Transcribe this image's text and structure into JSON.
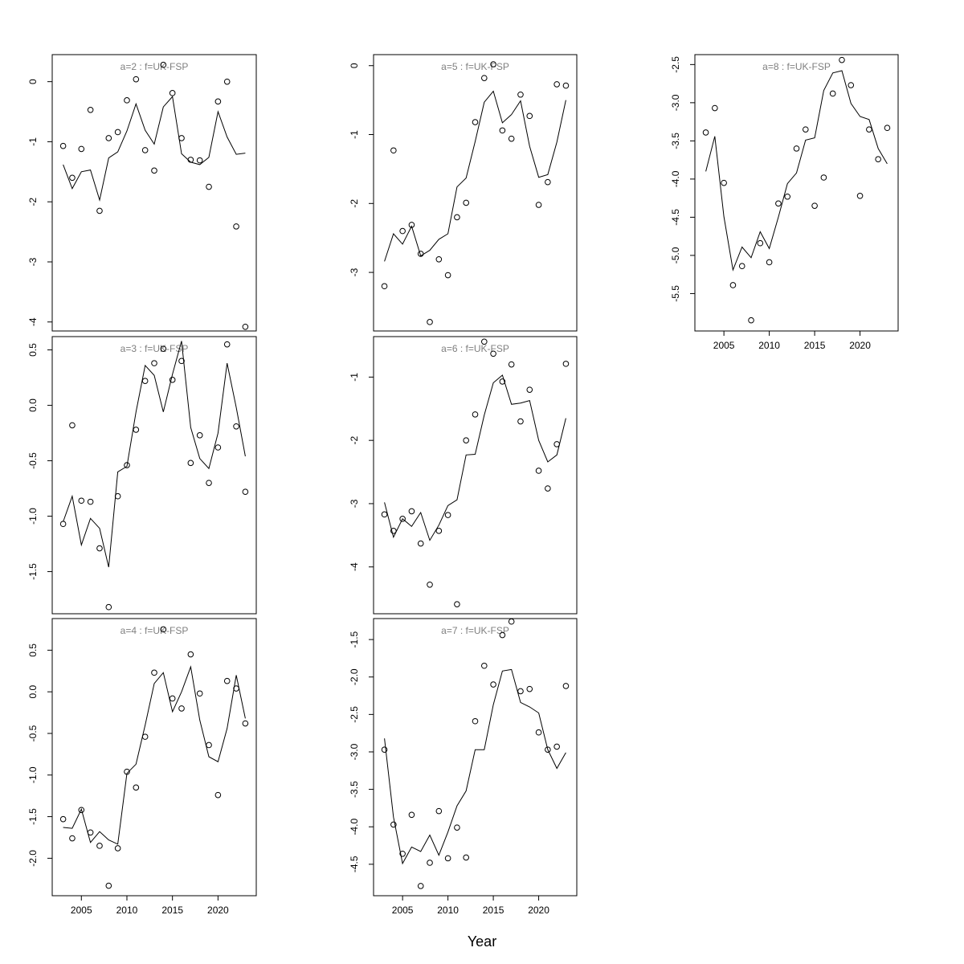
{
  "xlabel": "Year",
  "chart_data": [
    {
      "type": "line",
      "title": "a=2  :  f=UK-FSP",
      "xlim": [
        2001.8,
        2024.2
      ],
      "ylim": [
        -4.15,
        0.45
      ],
      "yticks": [
        0,
        -1,
        -2,
        -3,
        -4
      ],
      "xticks": [],
      "series": [
        {
          "kind": "line",
          "x": [
            2003,
            2004,
            2005,
            2006,
            2007,
            2008,
            2009,
            2010,
            2011,
            2012,
            2013,
            2014,
            2015,
            2016,
            2017,
            2018,
            2019,
            2020,
            2021,
            2022,
            2023
          ],
          "y": [
            -1.38,
            -1.78,
            -1.5,
            -1.47,
            -1.97,
            -1.27,
            -1.17,
            -0.82,
            -0.37,
            -0.81,
            -1.04,
            -0.42,
            -0.25,
            -1.2,
            -1.34,
            -1.38,
            -1.26,
            -0.5,
            -0.92,
            -1.21,
            -1.19
          ]
        },
        {
          "kind": "points",
          "x": [
            2003,
            2004,
            2005,
            2006,
            2007,
            2008,
            2009,
            2010,
            2011,
            2012,
            2013,
            2014,
            2015,
            2016,
            2017,
            2018,
            2019,
            2020,
            2021,
            2022,
            2023
          ],
          "y": [
            -1.07,
            -1.6,
            -1.12,
            -0.47,
            -2.15,
            -0.94,
            -0.84,
            -0.31,
            0.04,
            -1.14,
            -1.48,
            0.28,
            -0.19,
            -0.94,
            -1.3,
            -1.31,
            -1.75,
            -0.33,
            0.0,
            -2.41,
            -4.08
          ]
        }
      ]
    },
    {
      "type": "line",
      "title": "a=3  :  f=UK-FSP",
      "xlim": [
        2001.8,
        2024.2
      ],
      "ylim": [
        -1.88,
        0.62
      ],
      "yticks": [
        0.5,
        0.0,
        -0.5,
        -1.0,
        -1.5
      ],
      "xticks": [],
      "series": [
        {
          "kind": "line",
          "x": [
            2003,
            2004,
            2005,
            2006,
            2007,
            2008,
            2009,
            2010,
            2011,
            2012,
            2013,
            2014,
            2015,
            2016,
            2017,
            2018,
            2019,
            2020,
            2021,
            2022,
            2023
          ],
          "y": [
            -1.05,
            -0.82,
            -1.26,
            -1.02,
            -1.11,
            -1.46,
            -0.6,
            -0.55,
            -0.06,
            0.36,
            0.27,
            -0.06,
            0.28,
            0.58,
            -0.2,
            -0.48,
            -0.57,
            -0.25,
            0.38,
            -0.02,
            -0.46
          ]
        },
        {
          "kind": "points",
          "x": [
            2003,
            2004,
            2005,
            2006,
            2007,
            2008,
            2009,
            2010,
            2011,
            2012,
            2013,
            2014,
            2015,
            2016,
            2017,
            2018,
            2019,
            2020,
            2021,
            2022,
            2023
          ],
          "y": [
            -1.07,
            -0.18,
            -0.86,
            -0.87,
            -1.29,
            -1.82,
            -0.82,
            -0.54,
            -0.22,
            0.22,
            0.38,
            0.51,
            0.23,
            0.4,
            -0.52,
            -0.27,
            -0.7,
            -0.38,
            0.55,
            -0.19,
            -0.78
          ]
        }
      ]
    },
    {
      "type": "line",
      "title": "a=4  :  f=UK-FSP",
      "xlim": [
        2001.8,
        2024.2
      ],
      "ylim": [
        -2.45,
        0.88
      ],
      "yticks": [
        0.5,
        0.0,
        -0.5,
        -1.0,
        -1.5,
        -2.0
      ],
      "xticks": [
        2005,
        2010,
        2015,
        2020
      ],
      "series": [
        {
          "kind": "line",
          "x": [
            2003,
            2004,
            2005,
            2006,
            2007,
            2008,
            2009,
            2010,
            2011,
            2012,
            2013,
            2014,
            2015,
            2016,
            2017,
            2018,
            2019,
            2020,
            2021,
            2022,
            2023
          ],
          "y": [
            -1.63,
            -1.64,
            -1.41,
            -1.81,
            -1.68,
            -1.78,
            -1.83,
            -0.98,
            -0.87,
            -0.4,
            0.1,
            0.23,
            -0.24,
            0.0,
            0.3,
            -0.34,
            -0.78,
            -0.84,
            -0.44,
            0.2,
            -0.32
          ]
        },
        {
          "kind": "points",
          "x": [
            2003,
            2004,
            2005,
            2006,
            2007,
            2008,
            2009,
            2010,
            2011,
            2012,
            2013,
            2014,
            2015,
            2016,
            2017,
            2018,
            2019,
            2020,
            2021,
            2022,
            2023
          ],
          "y": [
            -1.53,
            -1.76,
            -1.42,
            -1.69,
            -1.85,
            -2.33,
            -1.88,
            -0.96,
            -1.15,
            -0.54,
            0.23,
            0.75,
            -0.08,
            -0.2,
            0.45,
            -0.02,
            -0.64,
            -1.24,
            0.13,
            0.04,
            -0.38
          ]
        }
      ]
    },
    {
      "type": "line",
      "title": "a=5  :  f=UK-FSP",
      "xlim": [
        2001.8,
        2024.2
      ],
      "ylim": [
        -3.85,
        0.16
      ],
      "yticks": [
        0,
        -1,
        -2,
        -3
      ],
      "xticks": [],
      "series": [
        {
          "kind": "line",
          "x": [
            2003,
            2004,
            2005,
            2006,
            2007,
            2008,
            2009,
            2010,
            2011,
            2012,
            2013,
            2014,
            2015,
            2016,
            2017,
            2018,
            2019,
            2020,
            2021,
            2022,
            2023
          ],
          "y": [
            -2.84,
            -2.44,
            -2.59,
            -2.33,
            -2.76,
            -2.68,
            -2.52,
            -2.44,
            -1.76,
            -1.63,
            -1.1,
            -0.53,
            -0.37,
            -0.83,
            -0.71,
            -0.51,
            -1.17,
            -1.62,
            -1.58,
            -1.11,
            -0.5
          ]
        },
        {
          "kind": "points",
          "x": [
            2003,
            2004,
            2005,
            2006,
            2007,
            2008,
            2009,
            2010,
            2011,
            2012,
            2013,
            2014,
            2015,
            2016,
            2017,
            2018,
            2019,
            2020,
            2021,
            2022,
            2023
          ],
          "y": [
            -3.2,
            -1.23,
            -2.4,
            -2.31,
            -2.73,
            -3.72,
            -2.81,
            -3.04,
            -2.2,
            -1.99,
            -0.82,
            -0.18,
            0.02,
            -0.94,
            -1.06,
            -0.42,
            -0.73,
            -2.02,
            -1.69,
            -0.27,
            -0.29
          ]
        }
      ]
    },
    {
      "type": "line",
      "title": "a=6  :  f=UK-FSP",
      "xlim": [
        2001.8,
        2024.2
      ],
      "ylim": [
        -4.74,
        -0.36
      ],
      "yticks": [
        -1,
        -2,
        -3,
        -4
      ],
      "xticks": [],
      "series": [
        {
          "kind": "line",
          "x": [
            2003,
            2004,
            2005,
            2006,
            2007,
            2008,
            2009,
            2010,
            2011,
            2012,
            2013,
            2014,
            2015,
            2016,
            2017,
            2018,
            2019,
            2020,
            2021,
            2022,
            2023
          ],
          "y": [
            -2.98,
            -3.53,
            -3.24,
            -3.36,
            -3.14,
            -3.58,
            -3.34,
            -3.03,
            -2.94,
            -2.23,
            -2.22,
            -1.6,
            -1.09,
            -0.97,
            -1.43,
            -1.41,
            -1.37,
            -2.0,
            -2.34,
            -2.23,
            -1.65
          ]
        },
        {
          "kind": "points",
          "x": [
            2003,
            2004,
            2005,
            2006,
            2007,
            2008,
            2009,
            2010,
            2011,
            2012,
            2013,
            2014,
            2015,
            2016,
            2017,
            2018,
            2019,
            2020,
            2021,
            2022,
            2023
          ],
          "y": [
            -3.17,
            -3.43,
            -3.24,
            -3.12,
            -3.63,
            -4.28,
            -3.43,
            -3.18,
            -4.59,
            -2.0,
            -1.59,
            -0.44,
            -0.63,
            -1.07,
            -0.8,
            -1.7,
            -1.2,
            -2.48,
            -2.76,
            -2.06,
            -0.79
          ]
        }
      ]
    },
    {
      "type": "line",
      "title": "a=7  :  f=UK-FSP",
      "xlim": [
        2001.8,
        2024.2
      ],
      "ylim": [
        -4.92,
        -1.22
      ],
      "yticks": [
        -1.5,
        -2.0,
        -2.5,
        -3.0,
        -3.5,
        -4.0,
        -4.5
      ],
      "xticks": [
        2005,
        2010,
        2015,
        2020
      ],
      "series": [
        {
          "kind": "line",
          "x": [
            2003,
            2004,
            2005,
            2006,
            2007,
            2008,
            2009,
            2010,
            2011,
            2012,
            2013,
            2014,
            2015,
            2016,
            2017,
            2018,
            2019,
            2020,
            2021,
            2022,
            2023
          ],
          "y": [
            -2.82,
            -3.87,
            -4.49,
            -4.27,
            -4.33,
            -4.11,
            -4.38,
            -4.07,
            -3.72,
            -3.52,
            -2.97,
            -2.97,
            -2.37,
            -1.92,
            -1.9,
            -2.34,
            -2.4,
            -2.48,
            -2.97,
            -3.22,
            -3.01
          ]
        },
        {
          "kind": "points",
          "x": [
            2003,
            2004,
            2005,
            2006,
            2007,
            2008,
            2009,
            2010,
            2011,
            2012,
            2013,
            2014,
            2015,
            2016,
            2017,
            2018,
            2019,
            2020,
            2021,
            2022,
            2023
          ],
          "y": [
            -2.97,
            -3.97,
            -4.36,
            -3.84,
            -4.79,
            -4.48,
            -3.79,
            -4.42,
            -4.01,
            -4.41,
            -2.59,
            -1.85,
            -2.1,
            -1.44,
            -1.26,
            -2.19,
            -2.16,
            -2.74,
            -2.97,
            -2.93,
            -2.12
          ]
        }
      ]
    },
    {
      "type": "line",
      "title": "a=8  :  f=UK-FSP",
      "xlim": [
        2001.8,
        2024.2
      ],
      "ylim": [
        -5.99,
        -2.37
      ],
      "yticks": [
        -2.5,
        -3.0,
        -3.5,
        -4.0,
        -4.5,
        -5.0,
        -5.5
      ],
      "xticks": [
        2005,
        2010,
        2015,
        2020
      ],
      "series": [
        {
          "kind": "line",
          "x": [
            2003,
            2004,
            2005,
            2006,
            2007,
            2008,
            2009,
            2010,
            2011,
            2012,
            2013,
            2014,
            2015,
            2016,
            2017,
            2018,
            2019,
            2020,
            2021,
            2022,
            2023
          ],
          "y": [
            -3.9,
            -3.44,
            -4.49,
            -5.19,
            -4.89,
            -5.03,
            -4.69,
            -4.91,
            -4.5,
            -4.06,
            -3.92,
            -3.49,
            -3.46,
            -2.84,
            -2.61,
            -2.58,
            -3.01,
            -3.18,
            -3.22,
            -3.6,
            -3.8
          ]
        },
        {
          "kind": "points",
          "x": [
            2003,
            2004,
            2005,
            2006,
            2007,
            2008,
            2009,
            2010,
            2011,
            2012,
            2013,
            2014,
            2015,
            2016,
            2017,
            2018,
            2019,
            2020,
            2021,
            2022,
            2023
          ],
          "y": [
            -3.39,
            -3.07,
            -4.05,
            -5.39,
            -5.14,
            -5.85,
            -4.84,
            -5.09,
            -4.32,
            -4.23,
            -3.6,
            -3.35,
            -4.35,
            -3.98,
            -2.88,
            -2.44,
            -2.77,
            -4.22,
            -3.35,
            -3.74,
            -3.33
          ]
        }
      ]
    }
  ]
}
